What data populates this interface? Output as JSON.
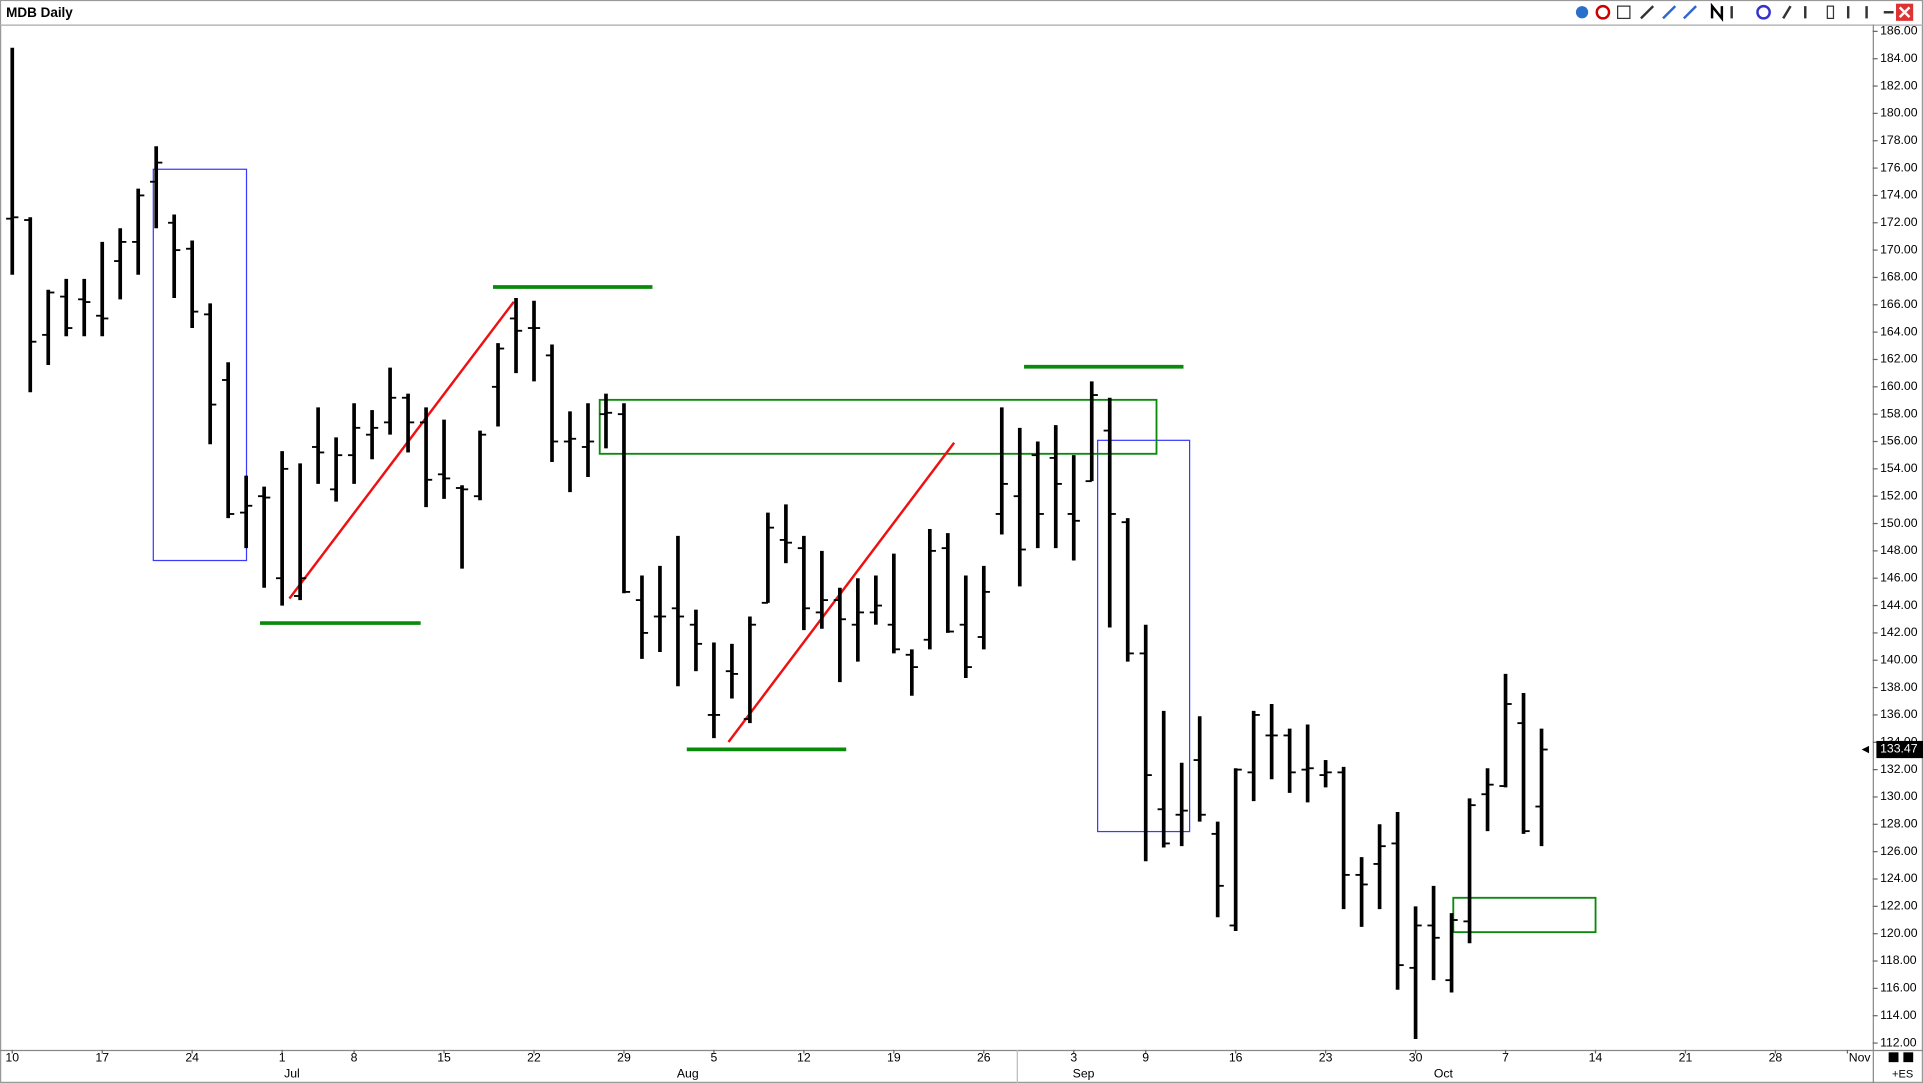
{
  "chart_data": {
    "type": "ohlc",
    "title": "MDB Daily",
    "corner_label": "+ES",
    "color": "#000000",
    "x": [
      "Jun 10",
      "Jun 11",
      "Jun 12",
      "Jun 13",
      "Jun 14",
      "Jun 17",
      "Jun 18",
      "Jun 19",
      "Jun 20",
      "Jun 21",
      "Jun 24",
      "Jun 25",
      "Jun 26",
      "Jun 27",
      "Jun 28",
      "Jul 1",
      "Jul 2",
      "Jul 3",
      "Jul 5",
      "Jul 8",
      "Jul 9",
      "Jul 10",
      "Jul 11",
      "Jul 12",
      "Jul 15",
      "Jul 16",
      "Jul 17",
      "Jul 18",
      "Jul 19",
      "Jul 22",
      "Jul 23",
      "Jul 24",
      "Jul 25",
      "Jul 26",
      "Jul 29",
      "Jul 30",
      "Jul 31",
      "Aug 1",
      "Aug 2",
      "Aug 5",
      "Aug 6",
      "Aug 7",
      "Aug 8",
      "Aug 9",
      "Aug 12",
      "Aug 13",
      "Aug 14",
      "Aug 15",
      "Aug 16",
      "Aug 19",
      "Aug 20",
      "Aug 21",
      "Aug 22",
      "Aug 23",
      "Aug 26",
      "Aug 27",
      "Aug 28",
      "Aug 29",
      "Aug 30",
      "Sep 3",
      "Sep 4",
      "Sep 5",
      "Sep 6",
      "Sep 9",
      "Sep 10",
      "Sep 11",
      "Sep 12",
      "Sep 13",
      "Sep 16",
      "Sep 17",
      "Sep 18",
      "Sep 19",
      "Sep 20",
      "Sep 23",
      "Sep 24",
      "Sep 25",
      "Sep 26",
      "Sep 27",
      "Sep 30",
      "Oct 1",
      "Oct 2",
      "Oct 3",
      "Oct 4",
      "Oct 7",
      "Oct 8",
      "Oct 9",
      "Oct 10",
      "Oct 11",
      "Oct 14",
      "Oct 15",
      "Oct 16",
      "Oct 17",
      "Oct 18",
      "Oct 21",
      "Oct 22",
      "Oct 23",
      "Oct 24",
      "Oct 25",
      "Oct 28",
      "Oct 29",
      "Oct 30",
      "Oct 31",
      "Nov 1"
    ],
    "open": [
      172.3,
      172.2,
      163.8,
      166.6,
      166.4,
      165.2,
      169.2,
      170.6,
      175.0,
      172.0,
      170.1,
      165.3,
      160.5,
      150.8,
      152.0,
      146.0,
      144.7,
      155.6,
      152.5,
      155.0,
      156.5,
      157.4,
      159.2,
      157.4,
      153.6,
      152.6,
      152.0,
      160.0,
      165.0,
      164.3,
      162.3,
      156.0,
      155.6,
      158.0,
      158.0,
      144.4,
      143.2,
      143.8,
      142.6,
      136.0,
      139.2,
      135.7,
      144.2,
      148.8,
      148.2,
      143.5,
      144.4,
      142.6,
      143.5,
      142.6,
      140.4,
      141.5,
      148.2,
      142.6,
      141.7,
      150.7,
      152.0,
      155.0,
      154.8,
      150.7,
      153.1,
      156.8,
      150.1,
      140.5,
      129.1,
      128.7,
      132.7,
      127.3,
      120.6,
      131.8,
      134.5,
      134.5,
      132.0,
      131.6,
      131.8,
      124.3,
      125.1,
      126.6,
      117.5,
      120.6,
      116.6,
      120.9,
      130.2,
      130.8,
      135.4,
      129.3,
      null,
      null,
      null,
      null,
      null,
      null,
      null,
      null,
      null,
      null,
      null,
      null,
      null,
      null,
      null,
      null,
      null
    ],
    "high": [
      184.8,
      172.4,
      167.1,
      167.9,
      167.9,
      170.6,
      171.6,
      174.5,
      177.6,
      172.6,
      170.7,
      166.1,
      161.8,
      153.5,
      152.7,
      155.3,
      154.4,
      158.5,
      156.3,
      158.8,
      158.3,
      161.4,
      159.5,
      158.5,
      157.6,
      152.8,
      156.8,
      163.2,
      166.5,
      166.3,
      163.1,
      158.2,
      158.8,
      159.5,
      158.8,
      146.2,
      146.9,
      149.1,
      143.7,
      141.3,
      141.2,
      143.2,
      150.8,
      151.4,
      149.1,
      148.0,
      145.3,
      146.0,
      146.2,
      147.8,
      140.8,
      149.6,
      149.3,
      146.2,
      146.9,
      158.5,
      157.0,
      156.0,
      157.2,
      155.0,
      160.4,
      159.2,
      150.4,
      142.6,
      136.3,
      132.5,
      135.9,
      128.2,
      132.1,
      136.3,
      136.8,
      135.0,
      135.3,
      132.7,
      132.2,
      125.6,
      128.0,
      128.9,
      122.0,
      123.5,
      121.5,
      129.9,
      132.1,
      139.0,
      137.6,
      135.0,
      null,
      null,
      null,
      null,
      null,
      null,
      null,
      null,
      null,
      null,
      null,
      null,
      null,
      null,
      null,
      null,
      null
    ],
    "low": [
      168.2,
      159.6,
      161.6,
      163.7,
      163.7,
      163.7,
      166.4,
      168.2,
      171.6,
      166.5,
      164.3,
      155.8,
      150.4,
      148.2,
      145.3,
      144.0,
      144.4,
      152.9,
      151.6,
      152.9,
      154.7,
      156.5,
      155.2,
      151.2,
      151.8,
      146.7,
      151.7,
      157.1,
      161.0,
      160.4,
      154.5,
      152.3,
      153.4,
      155.5,
      144.9,
      140.1,
      140.6,
      138.1,
      139.2,
      134.3,
      137.2,
      135.4,
      144.2,
      147.1,
      142.2,
      142.3,
      138.4,
      139.9,
      142.6,
      140.5,
      137.4,
      140.8,
      142.0,
      138.7,
      140.8,
      149.2,
      145.4,
      148.2,
      148.2,
      147.3,
      153.1,
      142.4,
      139.9,
      125.3,
      126.3,
      126.4,
      128.2,
      121.2,
      120.2,
      129.7,
      131.3,
      130.3,
      129.6,
      130.7,
      121.8,
      120.5,
      121.8,
      115.9,
      112.3,
      116.6,
      115.7,
      119.3,
      127.5,
      130.7,
      127.3,
      126.4,
      null,
      null,
      null,
      null,
      null,
      null,
      null,
      null,
      null,
      null,
      null,
      null,
      null,
      null,
      null,
      null,
      null
    ],
    "close": [
      172.4,
      163.3,
      166.9,
      164.3,
      166.2,
      165.0,
      170.6,
      174.0,
      176.4,
      170.0,
      165.5,
      158.7,
      150.7,
      151.3,
      151.9,
      154.0,
      146.0,
      155.2,
      155.0,
      157.0,
      157.0,
      159.2,
      157.4,
      153.2,
      153.3,
      152.5,
      156.5,
      162.8,
      164.1,
      164.3,
      156.0,
      156.2,
      156.0,
      158.1,
      145.0,
      142.0,
      143.2,
      143.2,
      141.2,
      136.0,
      139.0,
      142.6,
      149.7,
      148.6,
      143.8,
      144.4,
      143.0,
      143.5,
      144.0,
      140.8,
      139.5,
      148.0,
      142.1,
      139.5,
      145.0,
      152.9,
      148.1,
      150.7,
      152.9,
      150.2,
      159.4,
      150.7,
      140.5,
      131.6,
      126.6,
      129.0,
      128.7,
      123.5,
      132.0,
      136.0,
      134.5,
      131.8,
      132.1,
      131.8,
      124.3,
      123.6,
      126.4,
      117.7,
      120.6,
      119.7,
      121.0,
      129.4,
      130.9,
      136.8,
      127.5,
      133.47,
      null,
      null,
      null,
      null,
      null,
      null,
      null,
      null,
      null,
      null,
      null,
      null,
      null,
      null,
      null,
      null,
      null
    ],
    "ylim": [
      111.5,
      186.5
    ],
    "yticks": [
      {
        "value": 112,
        "label": "112.00"
      },
      {
        "value": 114,
        "label": "114.00"
      },
      {
        "value": 116,
        "label": "116.00"
      },
      {
        "value": 118,
        "label": "118.00"
      },
      {
        "value": 120,
        "label": "120.00"
      },
      {
        "value": 122,
        "label": "122.00"
      },
      {
        "value": 124,
        "label": "124.00"
      },
      {
        "value": 126,
        "label": "126.00"
      },
      {
        "value": 128,
        "label": "128.00"
      },
      {
        "value": 130,
        "label": "130.00"
      },
      {
        "value": 132,
        "label": "132.00"
      },
      {
        "value": 134,
        "label": "134.00"
      },
      {
        "value": 136,
        "label": "136.00"
      },
      {
        "value": 138,
        "label": "138.00"
      },
      {
        "value": 140,
        "label": "140.00"
      },
      {
        "value": 142,
        "label": "142.00"
      },
      {
        "value": 144,
        "label": "144.00"
      },
      {
        "value": 146,
        "label": "146.00"
      },
      {
        "value": 148,
        "label": "148.00"
      },
      {
        "value": 150,
        "label": "150.00"
      },
      {
        "value": 152,
        "label": "152.00"
      },
      {
        "value": 154,
        "label": "154.00"
      },
      {
        "value": 156,
        "label": "156.00"
      },
      {
        "value": 158,
        "label": "158.00"
      },
      {
        "value": 160,
        "label": "160.00"
      },
      {
        "value": 162,
        "label": "162.00"
      },
      {
        "value": 164,
        "label": "164.00"
      },
      {
        "value": 166,
        "label": "166.00"
      },
      {
        "value": 168,
        "label": "168.00"
      },
      {
        "value": 170,
        "label": "170.00"
      },
      {
        "value": 172,
        "label": "172.00"
      },
      {
        "value": 174,
        "label": "174.00"
      },
      {
        "value": 176,
        "label": "176.00"
      },
      {
        "value": 178,
        "label": "178.00"
      },
      {
        "value": 180,
        "label": "180.00"
      },
      {
        "value": 182,
        "label": "182.00"
      },
      {
        "value": 184,
        "label": "184.00"
      },
      {
        "value": 186,
        "label": "186.00"
      }
    ],
    "xticks": [
      {
        "value": "Jun 10",
        "label": "10"
      },
      {
        "value": "Jun 17",
        "label": "17"
      },
      {
        "value": "Jun 24",
        "label": "24"
      },
      {
        "value": "Jul 1",
        "label": "1"
      },
      {
        "value": "Jul 8",
        "label": "8"
      },
      {
        "value": "Jul 15",
        "label": "15"
      },
      {
        "value": "Jul 22",
        "label": "22"
      },
      {
        "value": "Jul 29",
        "label": "29"
      },
      {
        "value": "Aug 5",
        "label": "5"
      },
      {
        "value": "Aug 12",
        "label": "12"
      },
      {
        "value": "Aug 19",
        "label": "19"
      },
      {
        "value": "Aug 26",
        "label": "26"
      },
      {
        "value": "Sep 3",
        "label": "3"
      },
      {
        "value": "Sep 9",
        "label": "9"
      },
      {
        "value": "Sep 16",
        "label": "16"
      },
      {
        "value": "Sep 23",
        "label": "23"
      },
      {
        "value": "Sep 30",
        "label": "30"
      },
      {
        "value": "Oct 7",
        "label": "7"
      },
      {
        "value": "Oct 14",
        "label": "14"
      },
      {
        "value": "Oct 21",
        "label": "21"
      },
      {
        "value": "Oct 28",
        "label": "28"
      },
      {
        "value": "Nov 1",
        "label": "Nov"
      }
    ],
    "month_labels": [
      {
        "value": "Jul 1",
        "label": "Jul"
      },
      {
        "value": "Aug 1",
        "label": "Aug"
      },
      {
        "value": "Sep 3",
        "label": "Sep"
      },
      {
        "value": "Oct 1",
        "label": "Oct"
      }
    ]
  }
}
